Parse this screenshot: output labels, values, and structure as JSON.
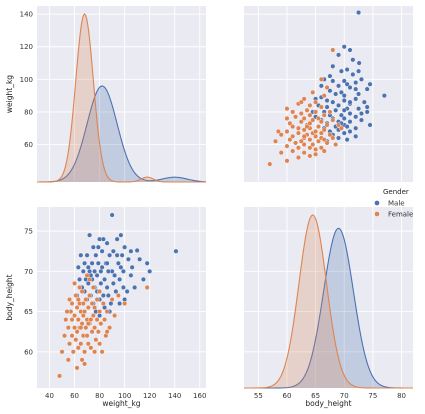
{
  "chart_data": {
    "type": "pairplot",
    "variables": [
      "weight_kg",
      "body_height"
    ],
    "hue": "Gender",
    "legend": {
      "title": "Gender",
      "placement": "right",
      "entries": [
        {
          "name": "Male",
          "color": "#4c72b0"
        },
        {
          "name": "Female",
          "color": "#dd8452"
        }
      ]
    },
    "grid": true,
    "background": "#eaeaf2",
    "axes": {
      "weight_kg": {
        "label": "weight_kg",
        "range": [
          30,
          165
        ],
        "ticks": [
          40,
          60,
          80,
          100,
          120,
          140,
          160
        ]
      },
      "weight_kg_y": {
        "label": "weight_kg",
        "range": [
          37,
          145
        ],
        "ticks": [
          60,
          80,
          100,
          120,
          140
        ]
      },
      "body_height_x": {
        "label": "body_height",
        "range": [
          52.5,
          82
        ],
        "ticks": [
          55,
          60,
          65,
          70,
          75,
          80
        ]
      },
      "body_height_y": {
        "label": "body_height",
        "range": [
          55.5,
          78
        ],
        "ticks": [
          60,
          65,
          70,
          75
        ]
      }
    },
    "kde": {
      "weight_kg": {
        "Male": {
          "mean": 82,
          "sd": 12,
          "tail_mean": 140,
          "tail_sd": 10,
          "tail_weight": 0.04,
          "color": "#4c72b0"
        },
        "Female": {
          "mean": 68,
          "sd": 7,
          "tail_mean": 118,
          "tail_sd": 5,
          "tail_weight": 0.02,
          "color": "#dd8452"
        }
      },
      "body_height": {
        "Male": {
          "mean": 69,
          "sd": 2.6,
          "color": "#4c72b0"
        },
        "Female": {
          "mean": 64.5,
          "sd": 2.4,
          "color": "#dd8452"
        }
      }
    },
    "series": [
      {
        "name": "Male",
        "color": "#4c72b0",
        "points": [
          [
            141,
            72.5
          ],
          [
            120,
            70
          ],
          [
            118,
            71
          ],
          [
            112,
            71.5
          ],
          [
            110,
            72.6
          ],
          [
            106,
            70.5
          ],
          [
            105,
            69.5
          ],
          [
            103,
            71.5
          ],
          [
            100,
            73
          ],
          [
            99,
            68
          ],
          [
            98,
            72
          ],
          [
            97,
            70.5
          ],
          [
            96,
            69
          ],
          [
            95,
            71
          ],
          [
            94,
            74
          ],
          [
            93,
            67.5
          ],
          [
            92,
            69.5
          ],
          [
            91,
            68.5
          ],
          [
            90,
            77
          ],
          [
            90,
            70
          ],
          [
            89,
            66
          ],
          [
            88,
            72
          ],
          [
            87,
            70
          ],
          [
            86,
            73.5
          ],
          [
            86,
            68
          ],
          [
            85,
            71
          ],
          [
            84,
            69
          ],
          [
            83,
            67
          ],
          [
            82,
            72.5
          ],
          [
            82,
            70.5
          ],
          [
            81,
            68.5
          ],
          [
            80,
            74
          ],
          [
            80,
            66.5
          ],
          [
            79,
            71
          ],
          [
            78,
            69.5
          ],
          [
            78,
            67.5
          ],
          [
            77,
            72
          ],
          [
            76,
            70
          ],
          [
            76,
            68
          ],
          [
            75,
            73
          ],
          [
            75,
            66
          ],
          [
            74,
            69
          ],
          [
            74,
            71
          ],
          [
            73,
            67
          ],
          [
            72,
            70
          ],
          [
            72,
            74.5
          ],
          [
            71,
            68.5
          ],
          [
            70,
            72
          ],
          [
            70,
            66.5
          ],
          [
            69,
            69
          ],
          [
            68,
            71
          ],
          [
            68,
            67.5
          ],
          [
            67,
            70
          ],
          [
            66,
            68
          ],
          [
            65,
            72
          ],
          [
            64,
            69
          ],
          [
            63,
            70.5
          ],
          [
            62,
            67
          ],
          [
            100,
            66.5
          ],
          [
            96,
            66
          ],
          [
            92,
            64.5
          ],
          [
            88,
            65
          ],
          [
            84,
            65.5
          ],
          [
            80,
            64.5
          ],
          [
            108,
            68
          ],
          [
            115,
            69
          ],
          [
            102,
            67.5
          ],
          [
            94,
            72
          ],
          [
            86,
            71
          ],
          [
            79,
            73
          ],
          [
            73,
            69.5
          ],
          [
            83,
            74
          ],
          [
            91,
            72.5
          ],
          [
            97,
            74.5
          ],
          [
            105,
            72.5
          ],
          [
            77,
            65
          ],
          [
            87,
            67
          ],
          [
            99,
            70
          ],
          [
            81,
            70
          ],
          [
            71,
            70.5
          ]
        ]
      },
      {
        "name": "Female",
        "color": "#dd8452",
        "points": [
          [
            48,
            57
          ],
          [
            50,
            60
          ],
          [
            52,
            62
          ],
          [
            53,
            64
          ],
          [
            55,
            59
          ],
          [
            55,
            63
          ],
          [
            56,
            61
          ],
          [
            57,
            65
          ],
          [
            58,
            62
          ],
          [
            58,
            66
          ],
          [
            59,
            60
          ],
          [
            60,
            63
          ],
          [
            60,
            64.5
          ],
          [
            61,
            61.5
          ],
          [
            61,
            67
          ],
          [
            62,
            62.5
          ],
          [
            62,
            65.5
          ],
          [
            63,
            60.5
          ],
          [
            63,
            64
          ],
          [
            64,
            63
          ],
          [
            64,
            66
          ],
          [
            65,
            61
          ],
          [
            65,
            65
          ],
          [
            66,
            63.5
          ],
          [
            66,
            67.5
          ],
          [
            67,
            62
          ],
          [
            67,
            64.5
          ],
          [
            68,
            65
          ],
          [
            68,
            60
          ],
          [
            69,
            63
          ],
          [
            69,
            66.5
          ],
          [
            70,
            64
          ],
          [
            70,
            62
          ],
          [
            71,
            65.5
          ],
          [
            71,
            61
          ],
          [
            72,
            63.5
          ],
          [
            72,
            67
          ],
          [
            73,
            64
          ],
          [
            73,
            60.5
          ],
          [
            74,
            66
          ],
          [
            74,
            62.5
          ],
          [
            75,
            64.5
          ],
          [
            75,
            68
          ],
          [
            76,
            63
          ],
          [
            76,
            65.5
          ],
          [
            77,
            61.5
          ],
          [
            78,
            64
          ],
          [
            78,
            66.5
          ],
          [
            79,
            62.5
          ],
          [
            80,
            65
          ],
          [
            80,
            67.5
          ],
          [
            81,
            63.5
          ],
          [
            82,
            60
          ],
          [
            83,
            66
          ],
          [
            84,
            64
          ],
          [
            85,
            62
          ],
          [
            86,
            65
          ],
          [
            88,
            63
          ],
          [
            90,
            66.5
          ],
          [
            92,
            64.5
          ],
          [
            95,
            67
          ],
          [
            100,
            66
          ],
          [
            118,
            68
          ],
          [
            68,
            58.5
          ],
          [
            66,
            59
          ],
          [
            62,
            58
          ],
          [
            72,
            69
          ],
          [
            60,
            68.5
          ],
          [
            56,
            66.5
          ],
          [
            64,
            68
          ],
          [
            70,
            69.5
          ],
          [
            54,
            65
          ],
          [
            58,
            64
          ],
          [
            76,
            60
          ],
          [
            86,
            62.5
          ],
          [
            80,
            61
          ],
          [
            65,
            63
          ],
          [
            71,
            63.5
          ],
          [
            63,
            66.5
          ],
          [
            67,
            66
          ]
        ]
      }
    ]
  }
}
